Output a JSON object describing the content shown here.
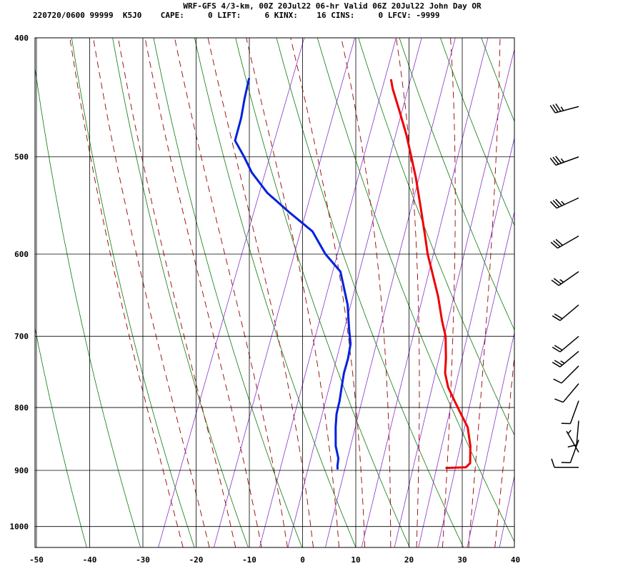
{
  "header": {
    "line1": "WRF-GFS 4/3-km, 00Z 20Jul22 06-hr Valid 06Z 20Jul22 John Day OR",
    "line2": "220720/0600 99999  K5J0    CAPE:     0 LIFT:     6 KINX:    16 CINS:     0 LFCV: -9999"
  },
  "chart_data": {
    "type": "line",
    "subtype": "skew-T log-P sounding",
    "title": "WRF-GFS 4/3-km, 00Z 20Jul22 06-hr Valid 06Z 20Jul22 John Day OR",
    "x_ticks": [
      -50,
      -40,
      -30,
      -20,
      -10,
      0,
      10,
      20,
      30,
      40
    ],
    "x_tick_labels": [
      "-50",
      "-40",
      "-30",
      "-20",
      "-10",
      "0",
      "10",
      "20",
      "30",
      "40"
    ],
    "y_ticks": [
      400,
      500,
      600,
      700,
      800,
      900,
      1000
    ],
    "y_tick_labels": [
      "400",
      "500",
      "600",
      "700",
      "800",
      "900",
      "1000"
    ],
    "xlim": [
      -50,
      40
    ],
    "ylim": [
      1040,
      400
    ],
    "log_pressure_axis": true,
    "grid": true,
    "isotherm_skew_per_decade": 90,
    "dry_adiabats_theta_K": [
      230,
      240,
      250,
      260,
      270,
      280,
      290,
      300,
      310,
      320,
      330,
      340,
      350,
      360,
      370,
      380,
      390,
      400,
      410,
      420,
      430,
      440
    ],
    "moist_adiabats_thetaw_C": [
      -25,
      -20,
      -15,
      -10,
      -5,
      0,
      5,
      10,
      15,
      20,
      25,
      30,
      35
    ],
    "mixing_ratio_lines_gkg": [
      0.4,
      1,
      2,
      3,
      5,
      8,
      12,
      16,
      20,
      28,
      40
    ],
    "colors": {
      "temperature": "#ee0000",
      "dewpoint": "#0022dd",
      "dry_adiabat": "#0a7a0a",
      "moist_adiabat": "#990000",
      "mixing_ratio": "#8833cc",
      "grid": "#000000",
      "wind_barb": "#000000"
    },
    "series": [
      {
        "key": "temperature",
        "values": [
          [
            896,
            21.2
          ],
          [
            895,
            24.8
          ],
          [
            888,
            25.3
          ],
          [
            860,
            24.1
          ],
          [
            830,
            22.2
          ],
          [
            810,
            20.0
          ],
          [
            790,
            17.8
          ],
          [
            770,
            15.6
          ],
          [
            750,
            14.0
          ],
          [
            730,
            13.1
          ],
          [
            700,
            11.4
          ],
          [
            680,
            9.6
          ],
          [
            650,
            7.1
          ],
          [
            620,
            4.1
          ],
          [
            600,
            2.0
          ],
          [
            580,
            0.2
          ],
          [
            550,
            -2.7
          ],
          [
            520,
            -5.8
          ],
          [
            500,
            -8.2
          ],
          [
            480,
            -10.7
          ],
          [
            460,
            -13.6
          ],
          [
            440,
            -16.7
          ],
          [
            433,
            -17.6
          ]
        ]
      },
      {
        "key": "dewpoint",
        "values": [
          [
            897,
            0.8
          ],
          [
            893,
            0.6
          ],
          [
            880,
            0.2
          ],
          [
            860,
            -1.2
          ],
          [
            830,
            -2.6
          ],
          [
            810,
            -3.4
          ],
          [
            790,
            -3.8
          ],
          [
            770,
            -4.4
          ],
          [
            750,
            -5.0
          ],
          [
            730,
            -5.3
          ],
          [
            710,
            -5.9
          ],
          [
            690,
            -7.3
          ],
          [
            660,
            -9.3
          ],
          [
            620,
            -13.1
          ],
          [
            600,
            -17.2
          ],
          [
            575,
            -21.3
          ],
          [
            555,
            -27.0
          ],
          [
            535,
            -32.6
          ],
          [
            515,
            -37.0
          ],
          [
            500,
            -39.6
          ],
          [
            485,
            -42.5
          ],
          [
            465,
            -43.0
          ],
          [
            448,
            -43.8
          ],
          [
            432,
            -44.4
          ]
        ]
      }
    ],
    "wind_barbs": [
      {
        "p": 895,
        "dir": 270,
        "kt": 10
      },
      {
        "p": 870,
        "dir": 330,
        "kt": 5
      },
      {
        "p": 850,
        "dir": 200,
        "kt": 10
      },
      {
        "p": 820,
        "dir": 185,
        "kt": 10
      },
      {
        "p": 790,
        "dir": 200,
        "kt": 10
      },
      {
        "p": 765,
        "dir": 220,
        "kt": 10
      },
      {
        "p": 740,
        "dir": 225,
        "kt": 10
      },
      {
        "p": 720,
        "dir": 230,
        "kt": 25
      },
      {
        "p": 700,
        "dir": 230,
        "kt": 20
      },
      {
        "p": 660,
        "dir": 230,
        "kt": 20
      },
      {
        "p": 620,
        "dir": 235,
        "kt": 25
      },
      {
        "p": 580,
        "dir": 240,
        "kt": 30
      },
      {
        "p": 540,
        "dir": 245,
        "kt": 35
      },
      {
        "p": 500,
        "dir": 250,
        "kt": 35
      },
      {
        "p": 455,
        "dir": 255,
        "kt": 35
      }
    ]
  }
}
